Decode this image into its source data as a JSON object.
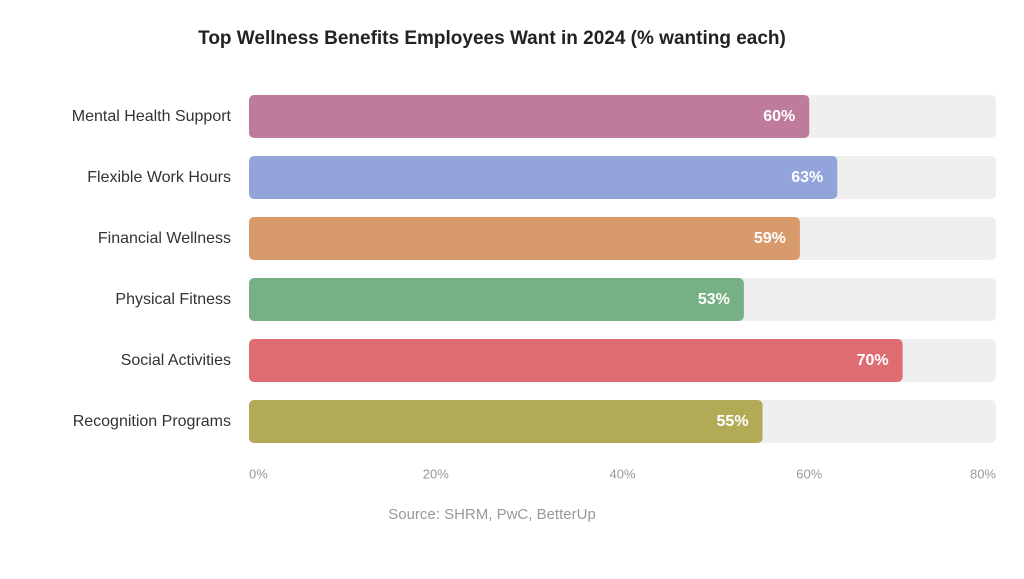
{
  "chart_data": {
    "type": "bar",
    "orientation": "horizontal",
    "title": "Top Wellness Benefits Employees Want in 2024 (% wanting each)",
    "source": "Source: SHRM, PwC, BetterUp",
    "categories": [
      "Mental Health Support",
      "Flexible Work Hours",
      "Financial Wellness",
      "Physical Fitness",
      "Social Activities",
      "Recognition Programs"
    ],
    "values": [
      60,
      63,
      59,
      53,
      70,
      55
    ],
    "value_labels": [
      "60%",
      "63%",
      "59%",
      "53%",
      "70%",
      "55%"
    ],
    "colors": [
      "#bf7b9c",
      "#93a4da",
      "#d99a6b",
      "#76b084",
      "#dd6c73",
      "#b1ab58"
    ],
    "track_color": "#efefef",
    "xlim": [
      0,
      80
    ],
    "xticks": [
      0,
      20,
      40,
      60,
      80
    ],
    "xtick_labels": [
      "0%",
      "20%",
      "40%",
      "60%",
      "80%"
    ],
    "xlabel": "",
    "ylabel": "",
    "grid": false,
    "legend": "none"
  }
}
